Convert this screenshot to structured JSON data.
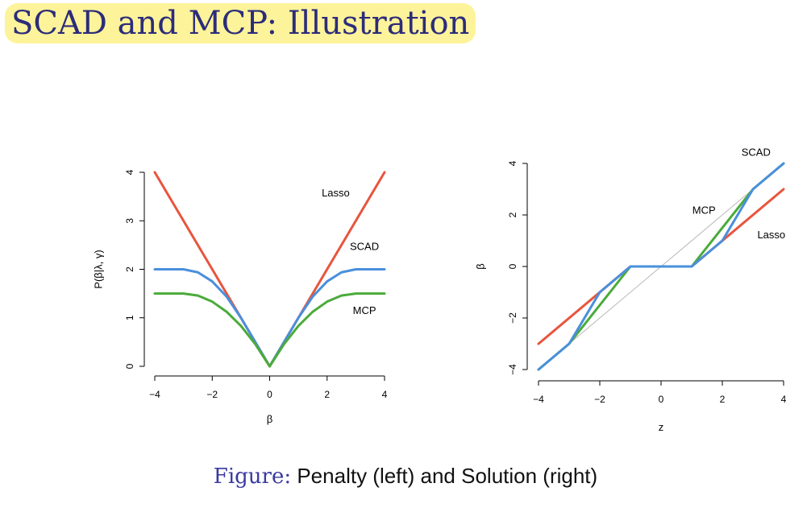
{
  "title": "SCAD and MCP: Illustration",
  "caption": {
    "lead": "Figure:",
    "text": "Penalty (left) and Solution (right)"
  },
  "colors": {
    "Lasso": "#e8553e",
    "SCAD": "#4a8fdc",
    "MCP": "#4aab3a",
    "identity": "#b8b8b8"
  },
  "chart_data": [
    {
      "type": "line",
      "panel": "left",
      "xlabel": "β",
      "ylabel": "P(β|λ, γ)",
      "xlim": [
        -4,
        4
      ],
      "ylim": [
        0,
        4
      ],
      "xticks": [
        -4,
        -2,
        0,
        2,
        4
      ],
      "yticks": [
        0,
        1,
        2,
        3,
        4
      ],
      "xtick_labels": [
        "−4",
        "−2",
        "0",
        "2",
        "4"
      ],
      "ytick_labels": [
        "0",
        "1",
        "2",
        "3",
        "4"
      ],
      "grid": false,
      "series": [
        {
          "name": "Lasso",
          "label_pos": [
            2.3,
            3.5
          ],
          "x": [
            -4,
            0,
            4
          ],
          "y": [
            4,
            0,
            4
          ]
        },
        {
          "name": "SCAD",
          "label_pos": [
            3.3,
            2.4
          ],
          "x": [
            -4,
            -3,
            -2.5,
            -2,
            -1.5,
            -1,
            0,
            1,
            1.5,
            2,
            2.5,
            3,
            4
          ],
          "y": [
            2,
            2,
            1.9375,
            1.75,
            1.4375,
            1,
            0,
            1,
            1.4375,
            1.75,
            1.9375,
            2,
            2
          ]
        },
        {
          "name": "MCP",
          "label_pos": [
            3.3,
            1.08
          ],
          "x": [
            -4,
            -3,
            -2.5,
            -2,
            -1.5,
            -1,
            -0.5,
            0,
            0.5,
            1,
            1.5,
            2,
            2.5,
            3,
            4
          ],
          "y": [
            1.5,
            1.5,
            1.4583,
            1.3333,
            1.125,
            0.8333,
            0.4583,
            0,
            0.4583,
            0.8333,
            1.125,
            1.3333,
            1.4583,
            1.5,
            1.5
          ]
        }
      ]
    },
    {
      "type": "line",
      "panel": "right",
      "xlabel": "z",
      "ylabel": "β",
      "xlim": [
        -4,
        4
      ],
      "ylim": [
        -4,
        4
      ],
      "xticks": [
        -4,
        -2,
        0,
        2,
        4
      ],
      "yticks": [
        -4,
        -2,
        0,
        2,
        4
      ],
      "xtick_labels": [
        "−4",
        "−2",
        "0",
        "2",
        "4"
      ],
      "ytick_labels": [
        "−4",
        "−2",
        "0",
        "2",
        "4"
      ],
      "grid": false,
      "identity_line": {
        "x": [
          -4,
          4
        ],
        "y": [
          -4,
          4
        ]
      },
      "series": [
        {
          "name": "Lasso",
          "label_pos": [
            3.6,
            1.1
          ],
          "x": [
            -4,
            -1,
            1,
            4
          ],
          "y": [
            -3,
            0,
            0,
            3
          ]
        },
        {
          "name": "MCP",
          "label_pos": [
            1.4,
            2.05
          ],
          "x": [
            -4,
            -3,
            -1,
            1,
            3,
            4
          ],
          "y": [
            -4,
            -3,
            0,
            0,
            3,
            4
          ]
        },
        {
          "name": "SCAD",
          "label_pos": [
            3.1,
            4.3
          ],
          "x": [
            -4,
            -3,
            -2,
            -1,
            1,
            2,
            3,
            4
          ],
          "y": [
            -4,
            -3,
            -1,
            0,
            0,
            1,
            3,
            4
          ]
        }
      ]
    }
  ]
}
